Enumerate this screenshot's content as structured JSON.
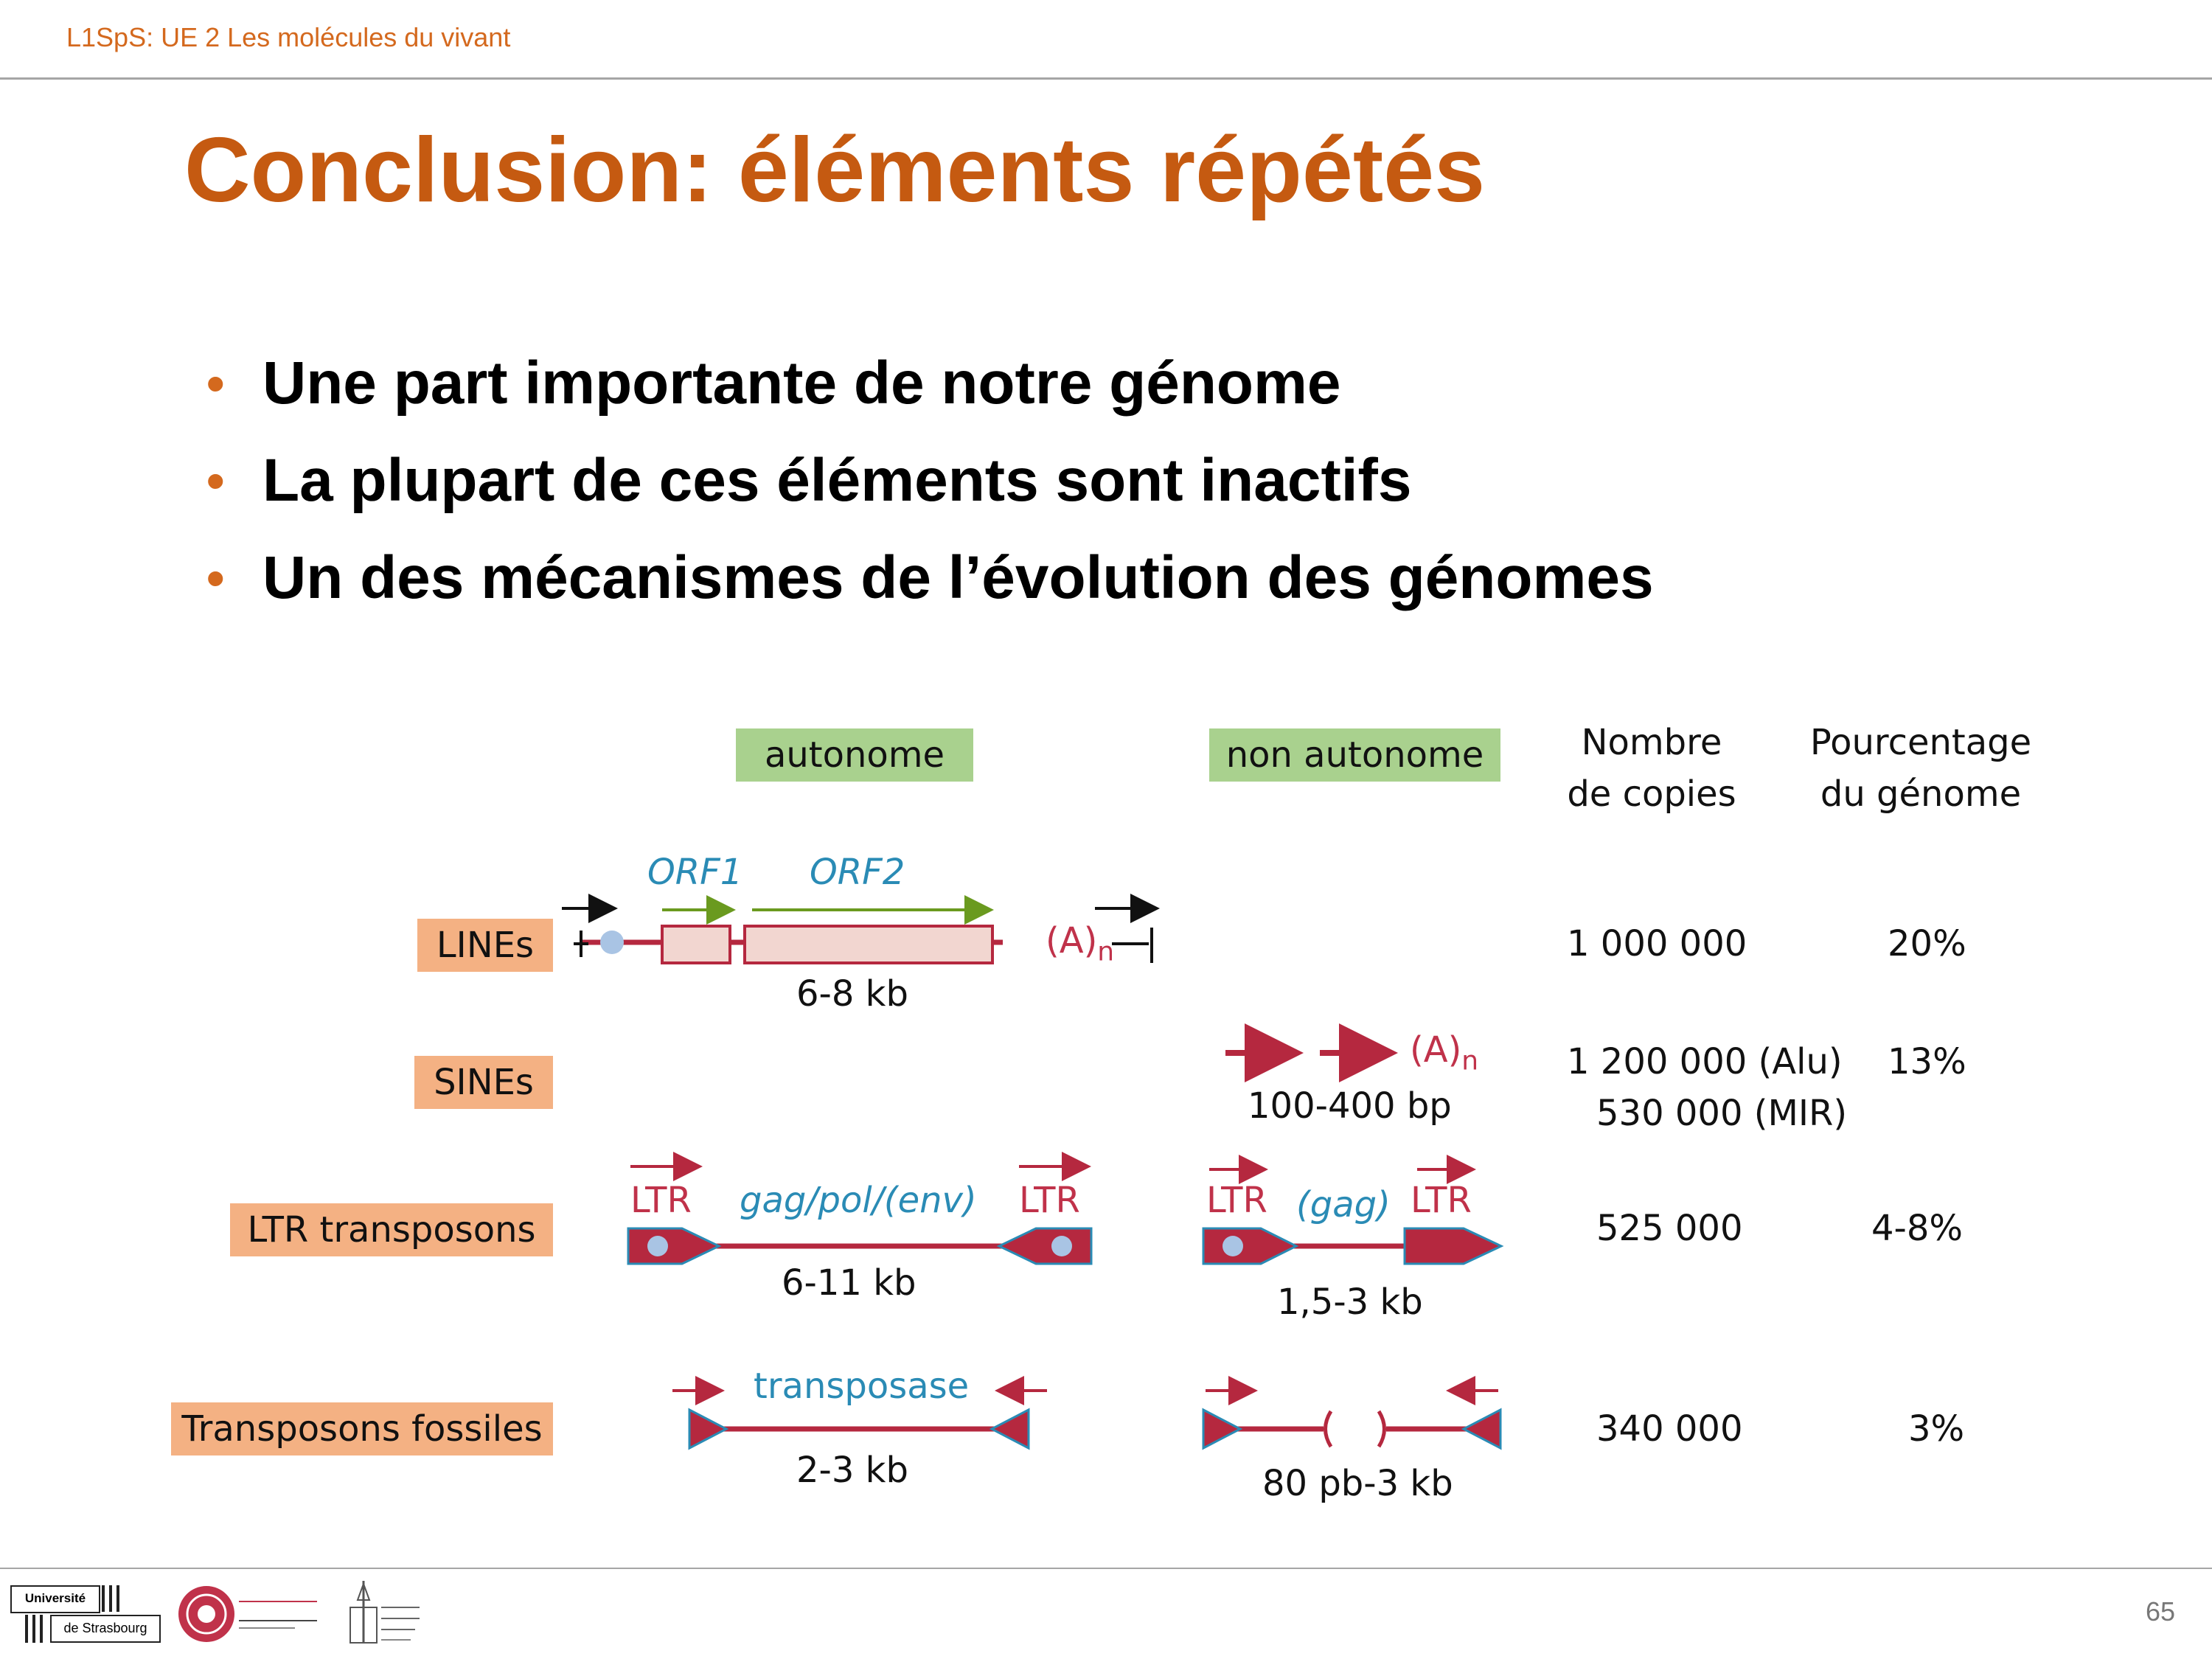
{
  "header": {
    "course": "L1SpS: UE 2 Les molécules du vivant"
  },
  "title": "Conclusion: éléments répétés",
  "bullets": [
    "Une part importante de notre génome",
    "La plupart de ces éléments sont inactifs",
    "Un des mécanismes de l’évolution des génomes"
  ],
  "table": {
    "col_autonome": "autonome",
    "col_non_autonome": "non autonome",
    "col_copies": [
      "Nombre",
      "de copies"
    ],
    "col_percent": [
      "Pourcentage",
      "du génome"
    ],
    "rows": [
      {
        "name": "LINEs",
        "copies": "1 000 000",
        "percent": "20%"
      },
      {
        "name": "SINEs",
        "copies": "1 200 000 (Alu)",
        "copies2": "530 000 (MIR)",
        "percent": "13%"
      },
      {
        "name": "LTR transposons",
        "copies": "525 000",
        "percent": "4-8%"
      },
      {
        "name": "Transposons fossiles",
        "copies": "340 000",
        "percent": "3%"
      }
    ]
  },
  "diagram": {
    "lines": {
      "orf1": "ORF1",
      "orf2": "ORF2",
      "polyA": "(A)",
      "polyA_sub": "n",
      "size": "6-8 kb"
    },
    "sines": {
      "polyA": "(A)",
      "polyA_sub": "n",
      "size": "100-400 bp"
    },
    "ltr_auto": {
      "ltr_left": "LTR",
      "genes": "gag/pol/(env)",
      "ltr_right": "LTR",
      "size": "6-11 kb"
    },
    "ltr_non": {
      "ltr_left": "LTR",
      "genes": "(gag)",
      "ltr_right": "LTR",
      "size": "1,5-3 kb"
    },
    "fossil_auto": {
      "enzyme": "transposase",
      "size": "2-3 kb"
    },
    "fossil_non": {
      "size": "80 pb-3 kb"
    }
  },
  "footer": {
    "logo_unistra": [
      "Université",
      "de Strasbourg"
    ],
    "page_number": "65"
  },
  "colors": {
    "accent": "#c55a11",
    "header_text": "#d4691e",
    "green_tag": "#a9d18e",
    "orange_tag": "#f4b183",
    "element_red": "#b5283f",
    "gene_blue": "#2a8bb5",
    "orf_green": "#6a9a1f"
  }
}
